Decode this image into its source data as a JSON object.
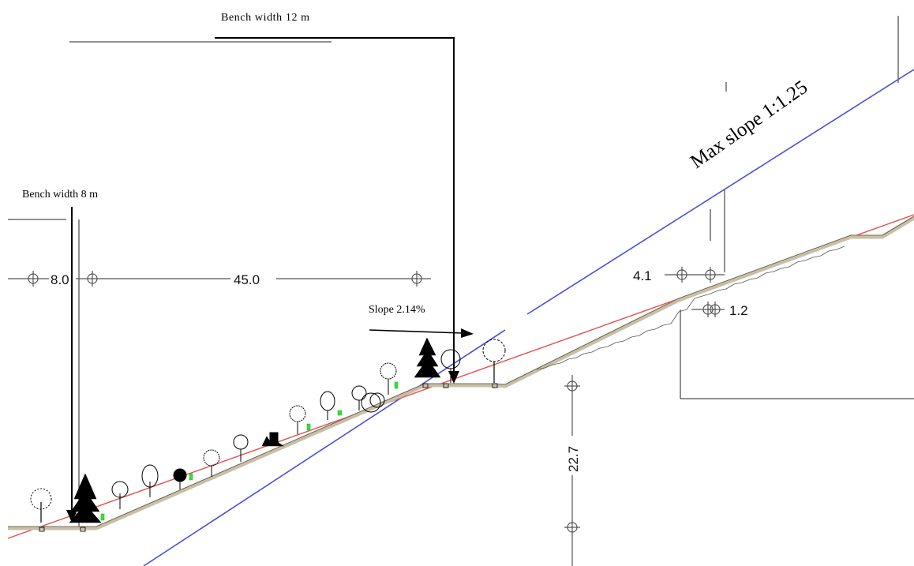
{
  "annotations": {
    "bench_upper": "Bench width 12 m",
    "bench_lower": "Bench width 8 m",
    "max_slope": "Max slope 1:1.25",
    "bench_slope": "Slope  2.14%"
  },
  "dimensions": {
    "d1": "8.0",
    "d2": "45.0",
    "d3": "4.1",
    "d4": "1.2",
    "d5": "22.7"
  },
  "colors": {
    "max_slope_line": "#4a4fd6",
    "design_line": "#e0524f",
    "terrain": "#c8bfa6",
    "ink": "#000000"
  }
}
